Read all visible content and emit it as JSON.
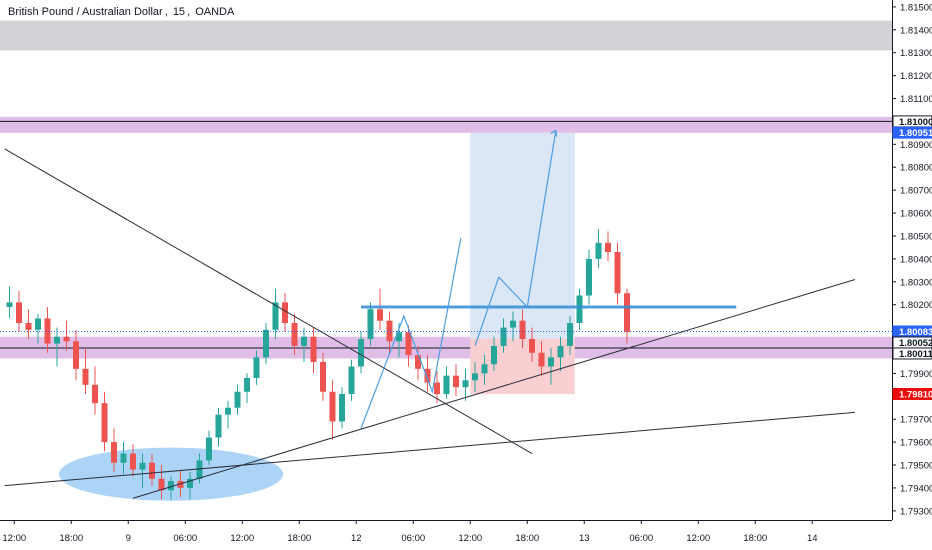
{
  "header": {
    "symbol": "British Pound / Australian Dollar",
    "interval": "15",
    "exchange": "OANDA"
  },
  "chart_data": {
    "type": "candlestick",
    "title": "British Pound / Australian Dollar, 15, OANDA",
    "ylim": [
      1.7926,
      1.8153
    ],
    "y_ticks": [
      "1.81500",
      "1.81400",
      "1.81300",
      "1.81200",
      "1.81100",
      "1.80900",
      "1.80800",
      "1.80700",
      "1.80600",
      "1.80500",
      "1.80400",
      "1.80300",
      "1.80200",
      "1.79900",
      "1.79800",
      "1.79700",
      "1.79600",
      "1.79500",
      "1.79400",
      "1.79300"
    ],
    "x_ticks": [
      {
        "label": "12:00",
        "t": 0.5
      },
      {
        "label": "18:00",
        "t": 6.5
      },
      {
        "label": "9",
        "t": 12.5
      },
      {
        "label": "06:00",
        "t": 18.5
      },
      {
        "label": "12:00",
        "t": 24.5
      },
      {
        "label": "18:00",
        "t": 30.5
      },
      {
        "label": "12",
        "t": 36.5
      },
      {
        "label": "06:00",
        "t": 42.5
      },
      {
        "label": "12:00",
        "t": 48.5
      },
      {
        "label": "18:00",
        "t": 54.5
      },
      {
        "label": "13",
        "t": 60.5
      },
      {
        "label": "06:00",
        "t": 66.5
      },
      {
        "label": "12:00",
        "t": 72.5
      },
      {
        "label": "18:00",
        "t": 78.5
      },
      {
        "label": "14",
        "t": 84.5
      }
    ],
    "price_labels": [
      {
        "text": "1.81000",
        "value": 1.81,
        "bg": "#ffffff",
        "fg": "#131722",
        "border": "#131722"
      },
      {
        "text": "1.80951",
        "value": 1.80951,
        "bg": "#2962ff",
        "fg": "#ffffff",
        "border": "#2962ff"
      },
      {
        "text": "1.80083",
        "value": 1.80083,
        "bg": "#2962ff",
        "fg": "#ffffff",
        "border": "#2962ff"
      },
      {
        "text": "1.80052",
        "value": 1.80052,
        "bg": "#ffffff",
        "fg": "#131722",
        "border": "#131722"
      },
      {
        "text": "1.80011",
        "value": 1.80011,
        "bg": "#ffffff",
        "fg": "#131722",
        "border": "#131722"
      },
      {
        "text": "1.79810",
        "value": 1.7981,
        "bg": "#ef0a0a",
        "fg": "#ffffff",
        "border": "#ef0a0a"
      }
    ],
    "current_price": 1.80083,
    "zones": [
      {
        "name": "grey-resistance-zone",
        "y1": 1.8144,
        "y2": 1.8131,
        "fill": "#d1d1d6"
      },
      {
        "name": "purple-resistance-zone",
        "y1": 1.8102,
        "y2": 1.8095,
        "fill": "#e1bee7",
        "line": 1.81
      },
      {
        "name": "purple-support-zone",
        "y1": 1.8006,
        "y2": 1.79965,
        "fill": "#e1bee7",
        "line": 1.80011
      }
    ],
    "long_position": {
      "t1": 48.5,
      "t2": 59.5,
      "target": 1.80951,
      "entry": 1.80052,
      "stop": 1.7981,
      "profit_color": "#dbe6f7",
      "loss_color": "#f9cfd1"
    },
    "horizontal_ray": {
      "t1": 37.0,
      "t2": 76.5,
      "value": 1.8019,
      "color": "#2f8cd3"
    },
    "projection_path": [
      [
        49,
        1.8002
      ],
      [
        51.5,
        1.8032
      ],
      [
        54.5,
        1.8019
      ],
      [
        57.5,
        1.8096
      ]
    ],
    "zigzag_path": [
      [
        37,
        1.7966
      ],
      [
        41.5,
        1.8015
      ],
      [
        44.5,
        1.7982
      ],
      [
        47.5,
        1.8049
      ]
    ],
    "trendlines": [
      {
        "name": "descending-trendline",
        "p1": [
          -0.5,
          1.8088
        ],
        "p2": [
          55,
          1.7955
        ]
      },
      {
        "name": "ascending-trendline",
        "p1": [
          13,
          1.79355
        ],
        "p2": [
          89,
          1.8031
        ]
      },
      {
        "name": "long-support-line",
        "p1": [
          -0.5,
          1.7941
        ],
        "p2": [
          89,
          1.7973
        ]
      }
    ],
    "ellipse": {
      "cx": 17,
      "cy": 1.7946,
      "rt": 11.8,
      "ry": 0.00116,
      "fill": "#9ecdf5"
    },
    "bull_color": "#26a69a",
    "bear_color": "#ef5350",
    "candles": [
      [
        1.8019,
        1.8028,
        1.8014,
        1.8021
      ],
      [
        1.8021,
        1.8026,
        1.8008,
        1.8012
      ],
      [
        1.8012,
        1.8018,
        1.8005,
        1.8009
      ],
      [
        1.8009,
        1.8016,
        1.8003,
        1.8014
      ],
      [
        1.8014,
        1.8019,
        1.7999,
        1.8003
      ],
      [
        1.8003,
        1.801,
        1.7993,
        1.8006
      ],
      [
        1.8006,
        1.8013,
        1.8,
        1.8004
      ],
      [
        1.8004,
        1.8009,
        1.7987,
        1.7992
      ],
      [
        1.7992,
        1.8001,
        1.7981,
        1.7985
      ],
      [
        1.7985,
        1.7993,
        1.7972,
        1.7977
      ],
      [
        1.7977,
        1.7982,
        1.7956,
        1.796
      ],
      [
        1.796,
        1.7966,
        1.7947,
        1.7951
      ],
      [
        1.7951,
        1.796,
        1.7946,
        1.7955
      ],
      [
        1.7955,
        1.7959,
        1.7945,
        1.7948
      ],
      [
        1.7948,
        1.7955,
        1.794,
        1.7951
      ],
      [
        1.7951,
        1.7955,
        1.7941,
        1.7944
      ],
      [
        1.7944,
        1.795,
        1.7935,
        1.7939
      ],
      [
        1.7939,
        1.7945,
        1.7935,
        1.7943
      ],
      [
        1.7943,
        1.7948,
        1.7936,
        1.794
      ],
      [
        1.794,
        1.7947,
        1.7935,
        1.7944
      ],
      [
        1.7944,
        1.7955,
        1.7942,
        1.7952
      ],
      [
        1.7952,
        1.7965,
        1.795,
        1.7962
      ],
      [
        1.7962,
        1.7975,
        1.7958,
        1.7972
      ],
      [
        1.7972,
        1.7978,
        1.7966,
        1.7975
      ],
      [
        1.7975,
        1.7985,
        1.7972,
        1.7982
      ],
      [
        1.7982,
        1.799,
        1.7977,
        1.7988
      ],
      [
        1.7988,
        1.8,
        1.7985,
        1.7997
      ],
      [
        1.7997,
        1.8012,
        1.7994,
        1.8009
      ],
      [
        1.8009,
        1.8027,
        1.8005,
        1.8021
      ],
      [
        1.8021,
        1.8025,
        1.8008,
        1.8012
      ],
      [
        1.8012,
        1.8016,
        1.7998,
        1.8002
      ],
      [
        1.8002,
        1.801,
        1.7995,
        1.8006
      ],
      [
        1.8006,
        1.801,
        1.799,
        1.7995
      ],
      [
        1.7995,
        1.7999,
        1.7978,
        1.7982
      ],
      [
        1.7982,
        1.7987,
        1.7961,
        1.7969
      ],
      [
        1.7969,
        1.7984,
        1.7966,
        1.7981
      ],
      [
        1.7981,
        1.7996,
        1.7978,
        1.7993
      ],
      [
        1.7993,
        1.8008,
        1.799,
        1.8005
      ],
      [
        1.8005,
        1.8021,
        1.8002,
        1.8018
      ],
      [
        1.8018,
        1.8027,
        1.8009,
        1.8013
      ],
      [
        1.8013,
        1.8017,
        1.7999,
        1.8004
      ],
      [
        1.8004,
        1.8012,
        1.7997,
        1.8008
      ],
      [
        1.8008,
        1.8011,
        1.7993,
        1.7998
      ],
      [
        1.7998,
        1.8002,
        1.7987,
        1.7992
      ],
      [
        1.7992,
        1.7998,
        1.7982,
        1.7986
      ],
      [
        1.7986,
        1.7991,
        1.7977,
        1.7981
      ],
      [
        1.7981,
        1.7993,
        1.7979,
        1.7989
      ],
      [
        1.7989,
        1.7994,
        1.798,
        1.7984
      ],
      [
        1.7984,
        1.7992,
        1.7978,
        1.7987
      ],
      [
        1.7987,
        1.7995,
        1.7982,
        1.799
      ],
      [
        1.799,
        1.7998,
        1.7985,
        1.7994
      ],
      [
        1.7994,
        1.8006,
        1.7991,
        1.8002
      ],
      [
        1.8002,
        1.8014,
        1.7999,
        1.801
      ],
      [
        1.801,
        1.8017,
        1.8004,
        1.8013
      ],
      [
        1.8013,
        1.8018,
        1.8001,
        1.8005
      ],
      [
        1.8005,
        1.801,
        1.7995,
        1.7999
      ],
      [
        1.7999,
        1.8004,
        1.7989,
        1.7993
      ],
      [
        1.7993,
        1.8001,
        1.7985,
        1.7997
      ],
      [
        1.7997,
        1.8006,
        1.7991,
        1.8002
      ],
      [
        1.8002,
        1.8015,
        1.7998,
        1.8012
      ],
      [
        1.8012,
        1.8027,
        1.8009,
        1.8024
      ],
      [
        1.8024,
        1.8044,
        1.802,
        1.804
      ],
      [
        1.804,
        1.8053,
        1.8036,
        1.8047
      ],
      [
        1.8047,
        1.8052,
        1.8039,
        1.8043
      ],
      [
        1.8043,
        1.8047,
        1.802,
        1.8025
      ],
      [
        1.8025,
        1.8027,
        1.8003,
        1.8008
      ]
    ]
  }
}
